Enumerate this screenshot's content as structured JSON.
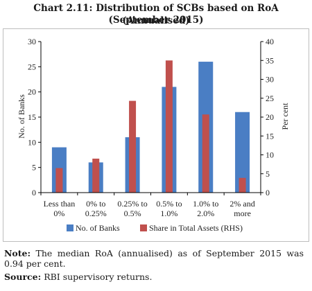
{
  "header": {
    "title_line1": "Chart 2.11: Distribution of SCBs based on RoA (Annualised)",
    "title_line2": "(September 2015)"
  },
  "colors": {
    "banks": "#4a7ec4",
    "assets": "#c0504d",
    "axis": "#000000"
  },
  "chart_data": {
    "type": "bar",
    "categories": [
      "Less than 0%",
      "0% to 0.25%",
      "0.25% to 0.5%",
      "0.5% to 1.0%",
      "1.0% to 2.0%",
      "2% and more"
    ],
    "category_lines": [
      [
        "Less than",
        "0%"
      ],
      [
        "0% to",
        "0.25%"
      ],
      [
        "0.25% to",
        "0.5%"
      ],
      [
        "0.5% to",
        "1.0%"
      ],
      [
        "1.0% to",
        "2.0%"
      ],
      [
        "2% and",
        "more"
      ]
    ],
    "series": [
      {
        "name": "No. of Banks",
        "axis": "left",
        "values": [
          9,
          6,
          11,
          21,
          26,
          16
        ]
      },
      {
        "name": "Share in Total Assets (RHS)",
        "axis": "right",
        "values": [
          6.5,
          9.0,
          24.3,
          35.0,
          20.7,
          3.9
        ]
      }
    ],
    "ylabel": "No. of Banks",
    "y2label": "Per cent",
    "ylim": [
      0,
      30
    ],
    "y2lim": [
      0,
      40
    ],
    "yticks": [
      0,
      5,
      10,
      15,
      20,
      25,
      30
    ],
    "y2ticks": [
      0,
      5,
      10,
      15,
      20,
      25,
      30,
      35,
      40
    ],
    "grid": false,
    "legend_position": "bottom"
  },
  "footer": {
    "note_label": "Note:",
    "note_text": " The median RoA (annualised) as of September 2015 was 0.94 per cent.",
    "source_label": "Source:",
    "source_text": " RBI supervisory returns."
  }
}
